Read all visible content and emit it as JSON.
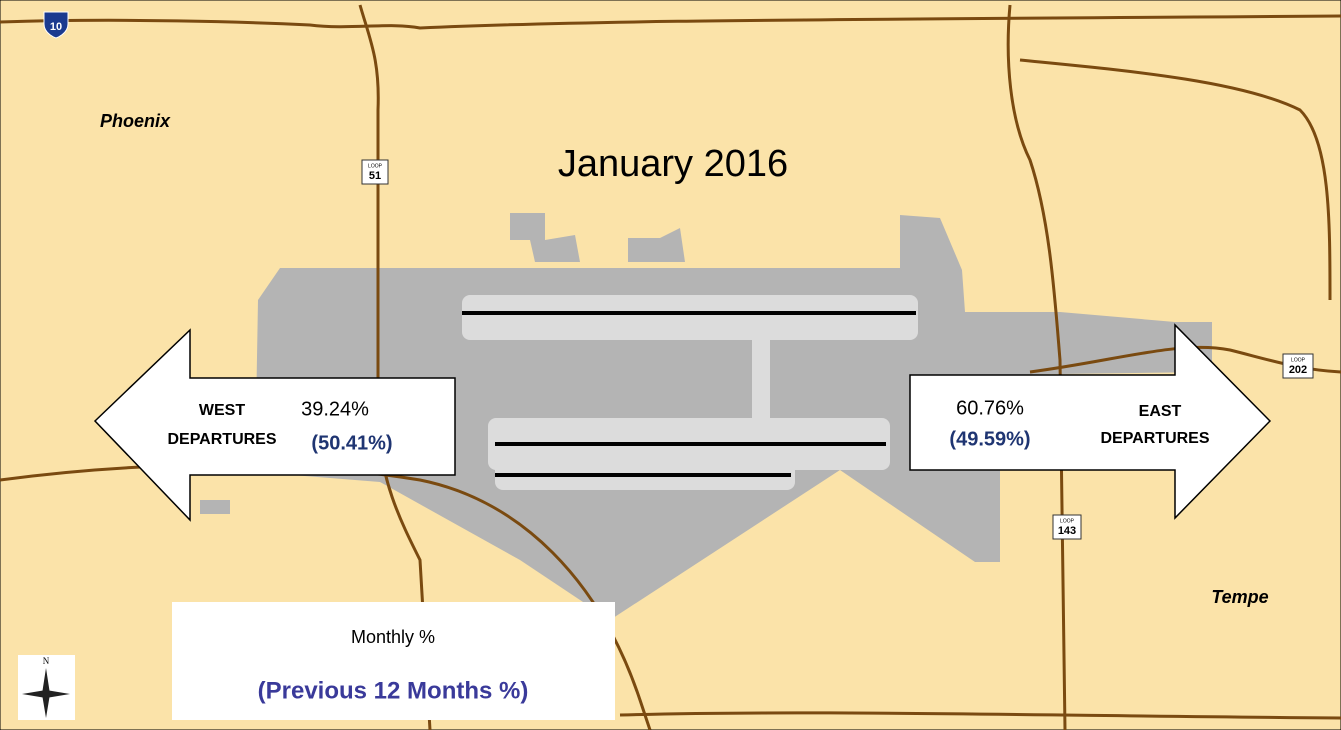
{
  "title": "January 2016",
  "places": [
    "Phoenix",
    "Tempe"
  ],
  "west": {
    "label_lines": [
      "WEST",
      "DEPARTURES"
    ],
    "monthly": "39.24%",
    "previous": "(50.41%)"
  },
  "east": {
    "label_lines": [
      "EAST",
      "DEPARTURES"
    ],
    "monthly": "60.76%",
    "previous": "(49.59%)"
  },
  "legend": {
    "monthly": "Monthly %",
    "previous": "(Previous 12 Months %)"
  },
  "shields": [
    {
      "prefix": "",
      "number": "10"
    },
    {
      "prefix": "LOOP",
      "number": "51"
    },
    {
      "prefix": "LOOP",
      "number": "202"
    },
    {
      "prefix": "LOOP",
      "number": "143"
    }
  ],
  "compass": "N"
}
